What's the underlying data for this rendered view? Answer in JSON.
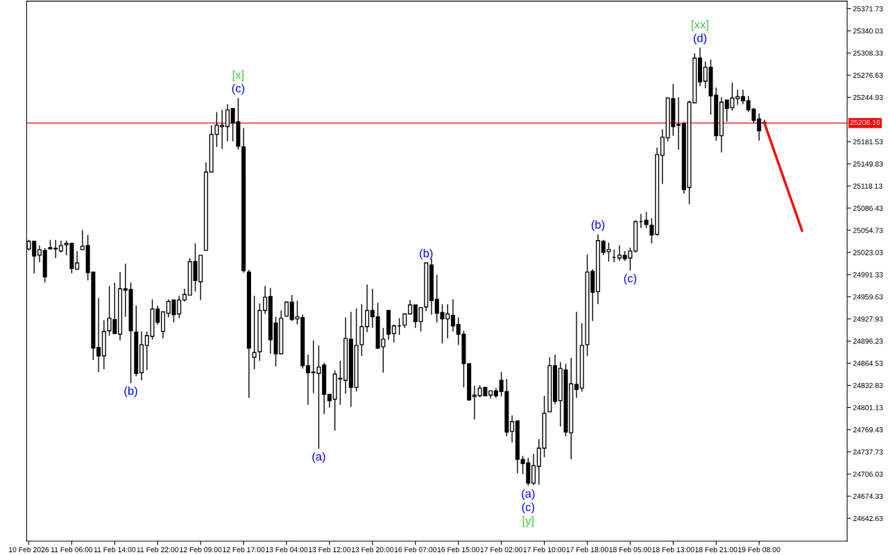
{
  "chart_data": {
    "type": "candlestick",
    "color": "#000000",
    "categories": [
      "10 Feb 2026",
      null,
      null,
      null,
      null,
      null,
      null,
      null,
      "11 Feb 06:00",
      null,
      null,
      null,
      null,
      null,
      null,
      null,
      "11 Feb 14:00",
      null,
      null,
      null,
      null,
      null,
      null,
      null,
      "11 Feb 22:00",
      null,
      null,
      null,
      null,
      null,
      null,
      null,
      "12 Feb 09:00",
      null,
      null,
      null,
      null,
      null,
      null,
      null,
      "12 Feb 17:00",
      null,
      null,
      null,
      null,
      null,
      null,
      null,
      "13 Feb 04:00",
      null,
      null,
      null,
      null,
      null,
      null,
      null,
      "13 Feb 12:00",
      null,
      null,
      null,
      null,
      null,
      null,
      null,
      "13 Feb 20:00",
      null,
      null,
      null,
      null,
      null,
      null,
      null,
      "16 Feb 07:00",
      null,
      null,
      null,
      null,
      null,
      null,
      null,
      "16 Feb 15:00",
      null,
      null,
      null,
      null,
      null,
      null,
      null,
      "17 Feb 02:00",
      null,
      null,
      null,
      null,
      null,
      null,
      null,
      "17 Feb 10:00",
      null,
      null,
      null,
      null,
      null,
      null,
      null,
      "17 Feb 18:00",
      null,
      null,
      null,
      null,
      null,
      null,
      null,
      "18 Feb 05:00",
      null,
      null,
      null,
      null,
      null,
      null,
      null,
      "18 Feb 13:00",
      null,
      null,
      null,
      null,
      null,
      null,
      null,
      "18 Feb 21:00",
      null,
      null,
      null,
      null,
      null,
      null,
      null,
      "19 Feb 08:00",
      null,
      null,
      null,
      null,
      null,
      null,
      null,
      null,
      null,
      null,
      null,
      null,
      null,
      null,
      null,
      null
    ],
    "ohlc": [
      [
        25028,
        25041,
        25026,
        25039
      ],
      [
        25039,
        25040,
        24993,
        25018
      ],
      [
        25019,
        25033,
        25009,
        25027
      ],
      [
        25026,
        25029,
        24980,
        24988
      ],
      [
        25030,
        25041,
        25028,
        25028
      ],
      [
        25029,
        25041,
        25015,
        25028
      ],
      [
        25025,
        25040,
        25023,
        25033
      ],
      [
        25034,
        25040,
        25019,
        25036
      ],
      [
        25036,
        25037,
        24993,
        25000
      ],
      [
        24999,
        25025,
        24999,
        25008
      ],
      [
        25027,
        25055,
        25027,
        25032
      ],
      [
        25033,
        25048,
        24983,
        24994
      ],
      [
        24995,
        24995,
        24869,
        24886
      ],
      [
        24887,
        24958,
        24852,
        24875
      ],
      [
        24875,
        24926,
        24856,
        24910
      ],
      [
        24911,
        24975,
        24904,
        24929
      ],
      [
        24927,
        24980,
        24907,
        24907
      ],
      [
        24906,
        24995,
        24897,
        24971
      ],
      [
        24971,
        25007,
        24931,
        24969
      ],
      [
        24970,
        24980,
        24836,
        24911
      ],
      [
        24909,
        24947,
        24846,
        24850
      ],
      [
        24851,
        24910,
        24840,
        24891
      ],
      [
        24890,
        24910,
        24855,
        24904
      ],
      [
        24903,
        24956,
        24898,
        24942
      ],
      [
        24942,
        24947,
        24920,
        24923
      ],
      [
        24910,
        24938,
        24900,
        24938
      ],
      [
        24936,
        24956,
        24930,
        24953
      ],
      [
        24955,
        24956,
        24923,
        24934
      ],
      [
        24935,
        24961,
        24929,
        24955
      ],
      [
        24955,
        24971,
        24953,
        24963
      ],
      [
        24962,
        25015,
        24962,
        25010
      ],
      [
        25010,
        25036,
        24967,
        24983
      ],
      [
        24981,
        25019,
        24955,
        25019
      ],
      [
        25026,
        25152,
        25026,
        25138
      ],
      [
        25138,
        25205,
        25138,
        25192
      ],
      [
        25192,
        25224,
        25174,
        25205
      ],
      [
        25203,
        25227,
        25171,
        25205
      ],
      [
        25203,
        25235,
        25182,
        25227
      ],
      [
        25229,
        25229,
        25182,
        25208
      ],
      [
        25210,
        25244,
        25170,
        25175
      ],
      [
        25174,
        25201,
        24994,
        24997
      ],
      [
        24995,
        24998,
        24815,
        24886
      ],
      [
        24873,
        24961,
        24856,
        24880
      ],
      [
        24881,
        24950,
        24868,
        24940
      ],
      [
        24940,
        24975,
        24935,
        24959
      ],
      [
        24960,
        24972,
        24878,
        24898
      ],
      [
        24922,
        24931,
        24860,
        24878
      ],
      [
        24878,
        24940,
        24878,
        24929
      ],
      [
        24932,
        24953,
        24931,
        24952
      ],
      [
        24952,
        24962,
        24925,
        24927
      ],
      [
        24928,
        24954,
        24920,
        24931
      ],
      [
        24930,
        24934,
        24857,
        24861
      ],
      [
        24861,
        24877,
        24805,
        24851
      ],
      [
        24852,
        24897,
        24822,
        24851
      ],
      [
        24850,
        24890,
        24742,
        24859
      ],
      [
        24862,
        24865,
        24792,
        24820
      ],
      [
        24820,
        24820,
        24801,
        24811
      ],
      [
        24813,
        24854,
        24768,
        24849
      ],
      [
        24842,
        24868,
        24805,
        24843
      ],
      [
        24840,
        24930,
        24821,
        24900
      ],
      [
        24899,
        24938,
        24802,
        24830
      ],
      [
        24830,
        24943,
        24824,
        24890
      ],
      [
        24891,
        24949,
        24875,
        24917
      ],
      [
        24917,
        24977,
        24909,
        24940
      ],
      [
        24940,
        24971,
        24915,
        24931
      ],
      [
        24931,
        24951,
        24885,
        24886
      ],
      [
        24888,
        24915,
        24851,
        24899
      ],
      [
        24940,
        24940,
        24898,
        24906
      ],
      [
        24907,
        24920,
        24894,
        24918
      ],
      [
        24918,
        24929,
        24905,
        24918
      ],
      [
        24919,
        24936,
        24915,
        24935
      ],
      [
        24935,
        24955,
        24934,
        24948
      ],
      [
        24948,
        24948,
        24915,
        24924
      ],
      [
        24924,
        24944,
        24910,
        24944
      ],
      [
        24945,
        25008,
        24939,
        25008
      ],
      [
        25005,
        25014,
        24934,
        24954
      ],
      [
        24956,
        24991,
        24923,
        24936
      ],
      [
        24937,
        24949,
        24893,
        24928
      ],
      [
        24928,
        24949,
        24900,
        24935
      ],
      [
        24933,
        24956,
        24910,
        24918
      ],
      [
        24920,
        24930,
        24891,
        24906
      ],
      [
        24906,
        24911,
        24830,
        24864
      ],
      [
        24864,
        24864,
        24811,
        24812
      ],
      [
        24817,
        24832,
        24784,
        24819
      ],
      [
        24818,
        24833,
        24816,
        24829
      ],
      [
        24830,
        24831,
        24818,
        24818
      ],
      [
        24819,
        24825,
        24814,
        24825
      ],
      [
        24825,
        24829,
        24815,
        24818
      ],
      [
        24840,
        24852,
        24817,
        24824
      ],
      [
        24824,
        24842,
        24760,
        24766
      ],
      [
        24767,
        24790,
        24751,
        24781
      ],
      [
        24782,
        24782,
        24707,
        24727
      ],
      [
        24727,
        24732,
        24706,
        24721
      ],
      [
        24722,
        24729,
        24689,
        24693
      ],
      [
        24693,
        24735,
        24690,
        24718
      ],
      [
        24717,
        24756,
        24691,
        24743
      ],
      [
        24743,
        24818,
        24730,
        24793
      ],
      [
        24795,
        24873,
        24795,
        24861
      ],
      [
        24861,
        24877,
        24806,
        24810
      ],
      [
        24811,
        24866,
        24774,
        24857
      ],
      [
        24855,
        24864,
        24760,
        24766
      ],
      [
        24765,
        24872,
        24727,
        24835
      ],
      [
        24834,
        24938,
        24815,
        24827
      ],
      [
        24829,
        24922,
        24824,
        24890
      ],
      [
        24891,
        25020,
        24875,
        24995
      ],
      [
        24996,
        24999,
        24925,
        24966
      ],
      [
        24967,
        25049,
        24949,
        25040
      ],
      [
        25039,
        25041,
        25019,
        25023
      ],
      [
        25024,
        25037,
        25010,
        25027
      ],
      [
        25016,
        25027,
        25009,
        25016
      ],
      [
        25015,
        25033,
        25011,
        25019
      ],
      [
        25019,
        25025,
        25011,
        25014
      ],
      [
        25015,
        25030,
        24997,
        25025
      ],
      [
        25025,
        25069,
        25023,
        25067
      ],
      [
        25067,
        25078,
        25058,
        25067
      ],
      [
        25069,
        25081,
        25058,
        25063
      ],
      [
        25062,
        25072,
        25036,
        25048
      ],
      [
        25049,
        25173,
        25047,
        25163
      ],
      [
        25162,
        25199,
        25121,
        25188
      ],
      [
        25187,
        25244,
        25182,
        25244
      ],
      [
        25243,
        25264,
        25190,
        25203
      ],
      [
        25206,
        25245,
        25170,
        25205
      ],
      [
        25207,
        25210,
        25107,
        25113
      ],
      [
        25116,
        25240,
        25092,
        25238
      ],
      [
        25237,
        25308,
        25237,
        25301
      ],
      [
        25301,
        25316,
        25261,
        25267
      ],
      [
        25268,
        25296,
        25258,
        25288
      ],
      [
        25288,
        25299,
        25220,
        25247
      ],
      [
        25248,
        25259,
        25183,
        25190
      ],
      [
        25190,
        25245,
        25166,
        25238
      ],
      [
        25241,
        25241,
        25210,
        25229
      ],
      [
        25230,
        25266,
        25226,
        25244
      ],
      [
        25243,
        25256,
        25234,
        25246
      ],
      [
        25246,
        25256,
        25235,
        25240
      ],
      [
        25240,
        25247,
        25224,
        25227
      ],
      [
        25228,
        25230,
        25208,
        25212
      ],
      [
        25214,
        25222,
        25183,
        25197
      ],
      [
        25209,
        25213,
        25206,
        25208
      ],
      null,
      null,
      null,
      null,
      null,
      null,
      null,
      null,
      null,
      null,
      null,
      null,
      null,
      null,
      null
    ],
    "series": [
      {
        "type": "line",
        "color": "#ff0000",
        "values": [
          null,
          null,
          null,
          null,
          null,
          null,
          null,
          null,
          null,
          null,
          null,
          null,
          null,
          null,
          null,
          null,
          null,
          null,
          null,
          null,
          null,
          null,
          null,
          null,
          null,
          null,
          null,
          null,
          null,
          null,
          null,
          null,
          null,
          null,
          null,
          null,
          null,
          null,
          null,
          null,
          null,
          null,
          null,
          null,
          null,
          null,
          null,
          null,
          null,
          null,
          null,
          null,
          null,
          null,
          null,
          null,
          null,
          null,
          null,
          null,
          null,
          null,
          null,
          null,
          null,
          null,
          null,
          null,
          null,
          null,
          null,
          null,
          null,
          null,
          null,
          null,
          null,
          null,
          null,
          null,
          null,
          null,
          null,
          null,
          null,
          null,
          null,
          null,
          null,
          null,
          null,
          null,
          null,
          null,
          null,
          null,
          null,
          null,
          null,
          null,
          null,
          null,
          null,
          null,
          null,
          null,
          null,
          null,
          null,
          null,
          null,
          null,
          null,
          null,
          null,
          null,
          null,
          null,
          null,
          null,
          null,
          null,
          null,
          null,
          null,
          null,
          null,
          null,
          null,
          null,
          null,
          null,
          null,
          null,
          null,
          null,
          null,
          25208,
          null,
          null,
          null,
          null,
          null,
          null,
          25054,
          null,
          null,
          null,
          null,
          null,
          null,
          null,
          null
        ]
      }
    ],
    "ylim": [
      24610,
      25382.6
    ],
    "yticks": [
      24642.63,
      24674.33,
      24706.03,
      24737.73,
      24769.43,
      24801.13,
      24832.83,
      24864.53,
      24896.23,
      24927.93,
      24959.63,
      24991.33,
      25023.03,
      25054.73,
      25086.43,
      25118.13,
      25149.83,
      25181.53,
      25244.93,
      25276.63,
      25308.33,
      25340.03,
      25371.73
    ],
    "ref_lines": [
      {
        "axis": "y",
        "value": 25208.16,
        "label": "25208.16",
        "color": "#ff0000"
      }
    ],
    "annotations": [
      {
        "text": "(c)",
        "y": 25244
      },
      {
        "text": "[x]",
        "y": 25244
      },
      {
        "text": "(b)",
        "y": 24836
      },
      {
        "text": "(a)",
        "y": 24742
      },
      {
        "text": "(b)",
        "y": 25008
      },
      {
        "text": "(a)",
        "y": 24689
      },
      {
        "text": "(c)",
        "y": 24689
      },
      {
        "text": "[y]",
        "y": 24689
      },
      {
        "text": "(b)",
        "y": 25049
      },
      {
        "text": "(c)",
        "y": 24997
      },
      {
        "text": "(d)",
        "y": 25316
      },
      {
        "text": "[xx]",
        "y": 25316
      }
    ]
  }
}
